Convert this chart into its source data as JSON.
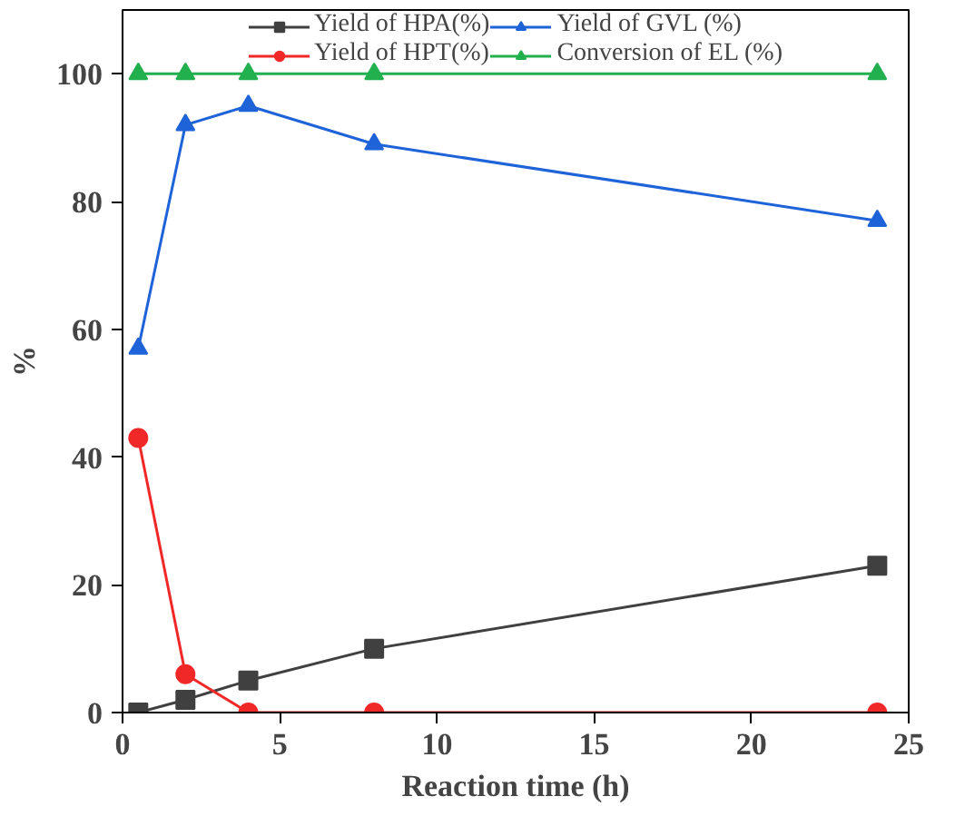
{
  "chart_data": {
    "type": "line",
    "xlabel": "Reaction time (h)",
    "ylabel": "%",
    "x": [
      0.5,
      2,
      4,
      8,
      24
    ],
    "series": [
      {
        "name": "Yield of HPA(%)",
        "color": "#404040",
        "marker": "square",
        "values": [
          0,
          2,
          5,
          10,
          23
        ]
      },
      {
        "name": "Yield of HPT(%)",
        "color": "#f02828",
        "marker": "circle",
        "values": [
          43,
          6,
          0,
          0,
          0
        ]
      },
      {
        "name": "Yield of GVL (%)",
        "color": "#1f63d8",
        "marker": "triangle",
        "values": [
          57,
          92,
          95,
          89,
          77
        ]
      },
      {
        "name": "Conversion of EL (%)",
        "color": "#22b04e",
        "marker": "triangle",
        "values": [
          100,
          100,
          100,
          100,
          100
        ]
      }
    ],
    "xlim": [
      0,
      25
    ],
    "xticks": [
      0,
      5,
      10,
      15,
      20,
      25
    ],
    "ylim": [
      0,
      110
    ],
    "yticks": [
      0,
      20,
      40,
      60,
      80,
      100
    ],
    "grid": false,
    "legend": "top"
  }
}
